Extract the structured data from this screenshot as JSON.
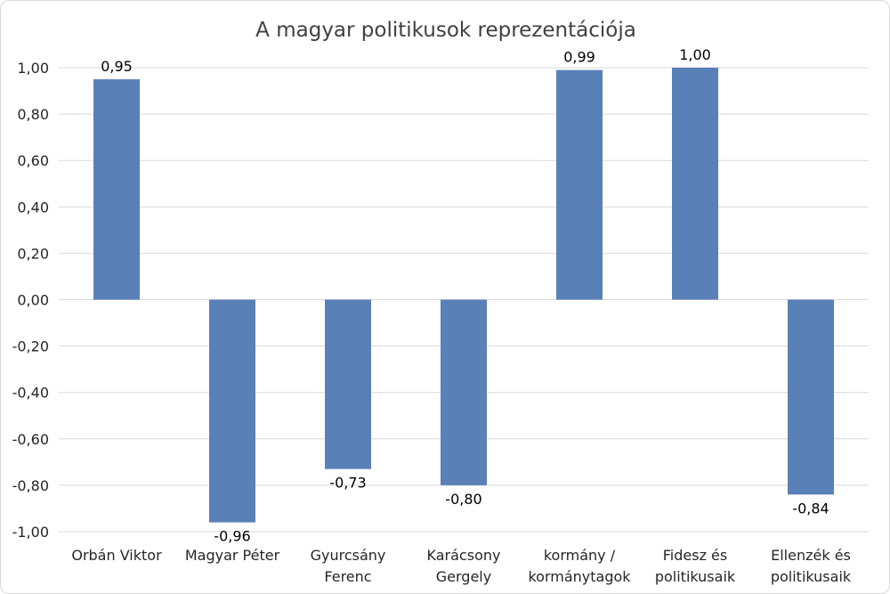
{
  "chart_data": {
    "type": "bar",
    "title": "A magyar politikusok reprezentációja",
    "xlabel": "",
    "ylabel": "",
    "categories": [
      [
        "Orbán Viktor"
      ],
      [
        "Magyar Péter"
      ],
      [
        "Gyurcsány",
        "Ferenc"
      ],
      [
        "Karácsony",
        "Gergely"
      ],
      [
        "kormány /",
        "kormánytagok"
      ],
      [
        "Fidesz és",
        "politikusaik"
      ],
      [
        "Ellenzék és",
        "politikusaik"
      ]
    ],
    "values": [
      0.95,
      -0.96,
      -0.73,
      -0.8,
      0.99,
      1.0,
      -0.84
    ],
    "data_labels": [
      "0,95",
      "-0,96",
      "-0,73",
      "-0,80",
      "0,99",
      "1,00",
      "-0,84"
    ],
    "ylim": [
      -1.0,
      1.0
    ],
    "yticks": [
      1.0,
      0.8,
      0.6,
      0.4,
      0.2,
      0.0,
      -0.2,
      -0.4,
      -0.6,
      -0.8,
      -1.0
    ],
    "ytick_labels": [
      "1,00",
      "0,80",
      "0,60",
      "0,40",
      "0,20",
      "0,00",
      "-0,20",
      "-0,40",
      "-0,60",
      "-0,80",
      "-1,00"
    ],
    "grid": true,
    "bar_color": "#5a80b8",
    "grid_color": "#d9d9d9"
  }
}
